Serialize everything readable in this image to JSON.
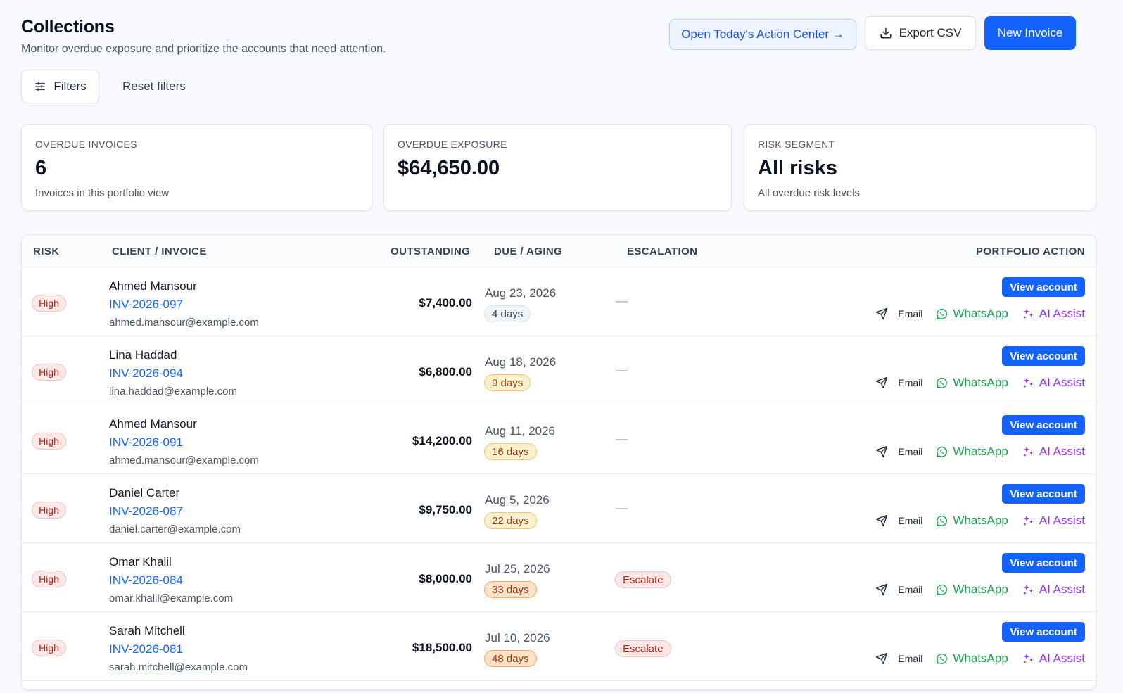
{
  "header": {
    "title": "Collections",
    "subtitle": "Monitor overdue exposure and prioritize the accounts that need attention."
  },
  "toolbar": {
    "action_center_label": "Open Today's Action Center →",
    "export_label": "Export CSV",
    "new_invoice_label": "New Invoice",
    "filters_label": "Filters",
    "reset_label": "Reset filters"
  },
  "stats": [
    {
      "label": "OVERDUE INVOICES",
      "value": "6",
      "note": "Invoices in this portfolio view"
    },
    {
      "label": "OVERDUE EXPOSURE",
      "value": "$64,650.00",
      "note": ""
    },
    {
      "label": "RISK SEGMENT",
      "value": "All risks",
      "note": "All overdue risk levels"
    }
  ],
  "table": {
    "columns": [
      "RISK",
      "CLIENT / INVOICE",
      "OUTSTANDING",
      "DUE / AGING",
      "ESCALATION",
      "PORTFOLIO ACTION"
    ],
    "view_label": "View account",
    "email_label": "Email",
    "whatsapp_label": "WhatsApp",
    "ai_label": "AI Assist",
    "dash": "—",
    "rows": [
      {
        "risk": "High",
        "client": "Ahmed Mansour",
        "invoice": "INV-2026-097",
        "email": "ahmed.mansour@example.com",
        "amount": "$7,400.00",
        "due": "Aug 23, 2026",
        "aging": "4 days",
        "aging_level": "neutral",
        "escalation": ""
      },
      {
        "risk": "High",
        "client": "Lina Haddad",
        "invoice": "INV-2026-094",
        "email": "lina.haddad@example.com",
        "amount": "$6,800.00",
        "due": "Aug 18, 2026",
        "aging": "9 days",
        "aging_level": "warm",
        "escalation": ""
      },
      {
        "risk": "High",
        "client": "Ahmed Mansour",
        "invoice": "INV-2026-091",
        "email": "ahmed.mansour@example.com",
        "amount": "$14,200.00",
        "due": "Aug 11, 2026",
        "aging": "16 days",
        "aging_level": "warm",
        "escalation": ""
      },
      {
        "risk": "High",
        "client": "Daniel Carter",
        "invoice": "INV-2026-087",
        "email": "daniel.carter@example.com",
        "amount": "$9,750.00",
        "due": "Aug 5, 2026",
        "aging": "22 days",
        "aging_level": "warm",
        "escalation": ""
      },
      {
        "risk": "High",
        "client": "Omar Khalil",
        "invoice": "INV-2026-084",
        "email": "omar.khalil@example.com",
        "amount": "$8,000.00",
        "due": "Jul 25, 2026",
        "aging": "33 days",
        "aging_level": "hot",
        "escalation": "Escalate"
      },
      {
        "risk": "High",
        "client": "Sarah Mitchell",
        "invoice": "INV-2026-081",
        "email": "sarah.mitchell@example.com",
        "amount": "$18,500.00",
        "due": "Jul 10, 2026",
        "aging": "48 days",
        "aging_level": "hot",
        "escalation": "Escalate"
      }
    ]
  },
  "colors": {
    "primary": "#1463ff",
    "risk_high": "#b42318",
    "whatsapp": "#16a34a",
    "ai_assist": "#9333ea"
  }
}
